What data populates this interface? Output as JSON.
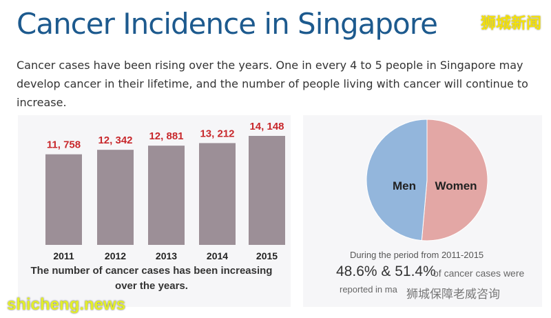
{
  "title": "Cancer Incidence in Singapore",
  "description": "Cancer cases have been rising over the years. One in every 4 to 5 people in Singapore may develop cancer in their lifetime, and the number of people living with cancer will continue to increase.",
  "chart_data": [
    {
      "type": "bar",
      "categories": [
        "2011",
        "2012",
        "2013",
        "2014",
        "2015"
      ],
      "values": [
        11758,
        12342,
        12881,
        13212,
        14148
      ],
      "labels": [
        "11, 758",
        "12, 342",
        "12, 881",
        "13, 212",
        "14, 148"
      ],
      "caption": "The number of cancer cases has been increasing over the years.",
      "bar_color": "#9c8f97",
      "label_color": "#c8282c"
    },
    {
      "type": "pie",
      "labels": [
        "Men",
        "Women"
      ],
      "values": [
        48.6,
        51.4
      ],
      "colors": [
        "#93b6dc",
        "#e3a7a5"
      ],
      "caption_line1": "During the period from 2011-2015",
      "percent_text": "48.6% & 51.4%",
      "caption_line2": "of cancer cases were",
      "caption_line3": "reported in ma"
    }
  ],
  "watermarks": {
    "top": "狮城新闻",
    "bottom": "shicheng.news",
    "wechat": "狮城保障老威咨询"
  }
}
